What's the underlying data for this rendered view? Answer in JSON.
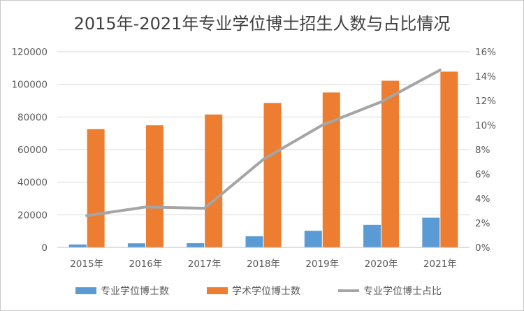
{
  "chart_data": {
    "type": "bar",
    "title": "2015年-2021年专业学位博士招生人数与占比情况",
    "categories": [
      "2015年",
      "2016年",
      "2017年",
      "2018年",
      "2019年",
      "2020年",
      "2021年"
    ],
    "series": [
      {
        "name": "专业学位博士数",
        "type": "bar",
        "axis": "left",
        "color": "#5b9bd5",
        "values": [
          1800,
          2500,
          2600,
          6800,
          10200,
          13800,
          18200
        ]
      },
      {
        "name": "学术学位博士数",
        "type": "bar",
        "axis": "left",
        "color": "#ed7d31",
        "values": [
          72500,
          74900,
          81500,
          88600,
          95000,
          102200,
          107800
        ]
      },
      {
        "name": "专业学位博士占比",
        "type": "line",
        "axis": "right",
        "color": "#a5a5a5",
        "values": [
          2.6,
          3.3,
          3.2,
          7.2,
          10.0,
          11.9,
          14.5
        ]
      }
    ],
    "y_left": {
      "min": 0,
      "max": 120000,
      "ticks": [
        "0",
        "20000",
        "40000",
        "60000",
        "80000",
        "100000",
        "120000"
      ]
    },
    "y_right": {
      "min": 0,
      "max": 16,
      "ticks": [
        "0%",
        "2%",
        "4%",
        "6%",
        "8%",
        "10%",
        "12%",
        "14%",
        "16%"
      ]
    },
    "grid": true,
    "legend": "bottom"
  }
}
